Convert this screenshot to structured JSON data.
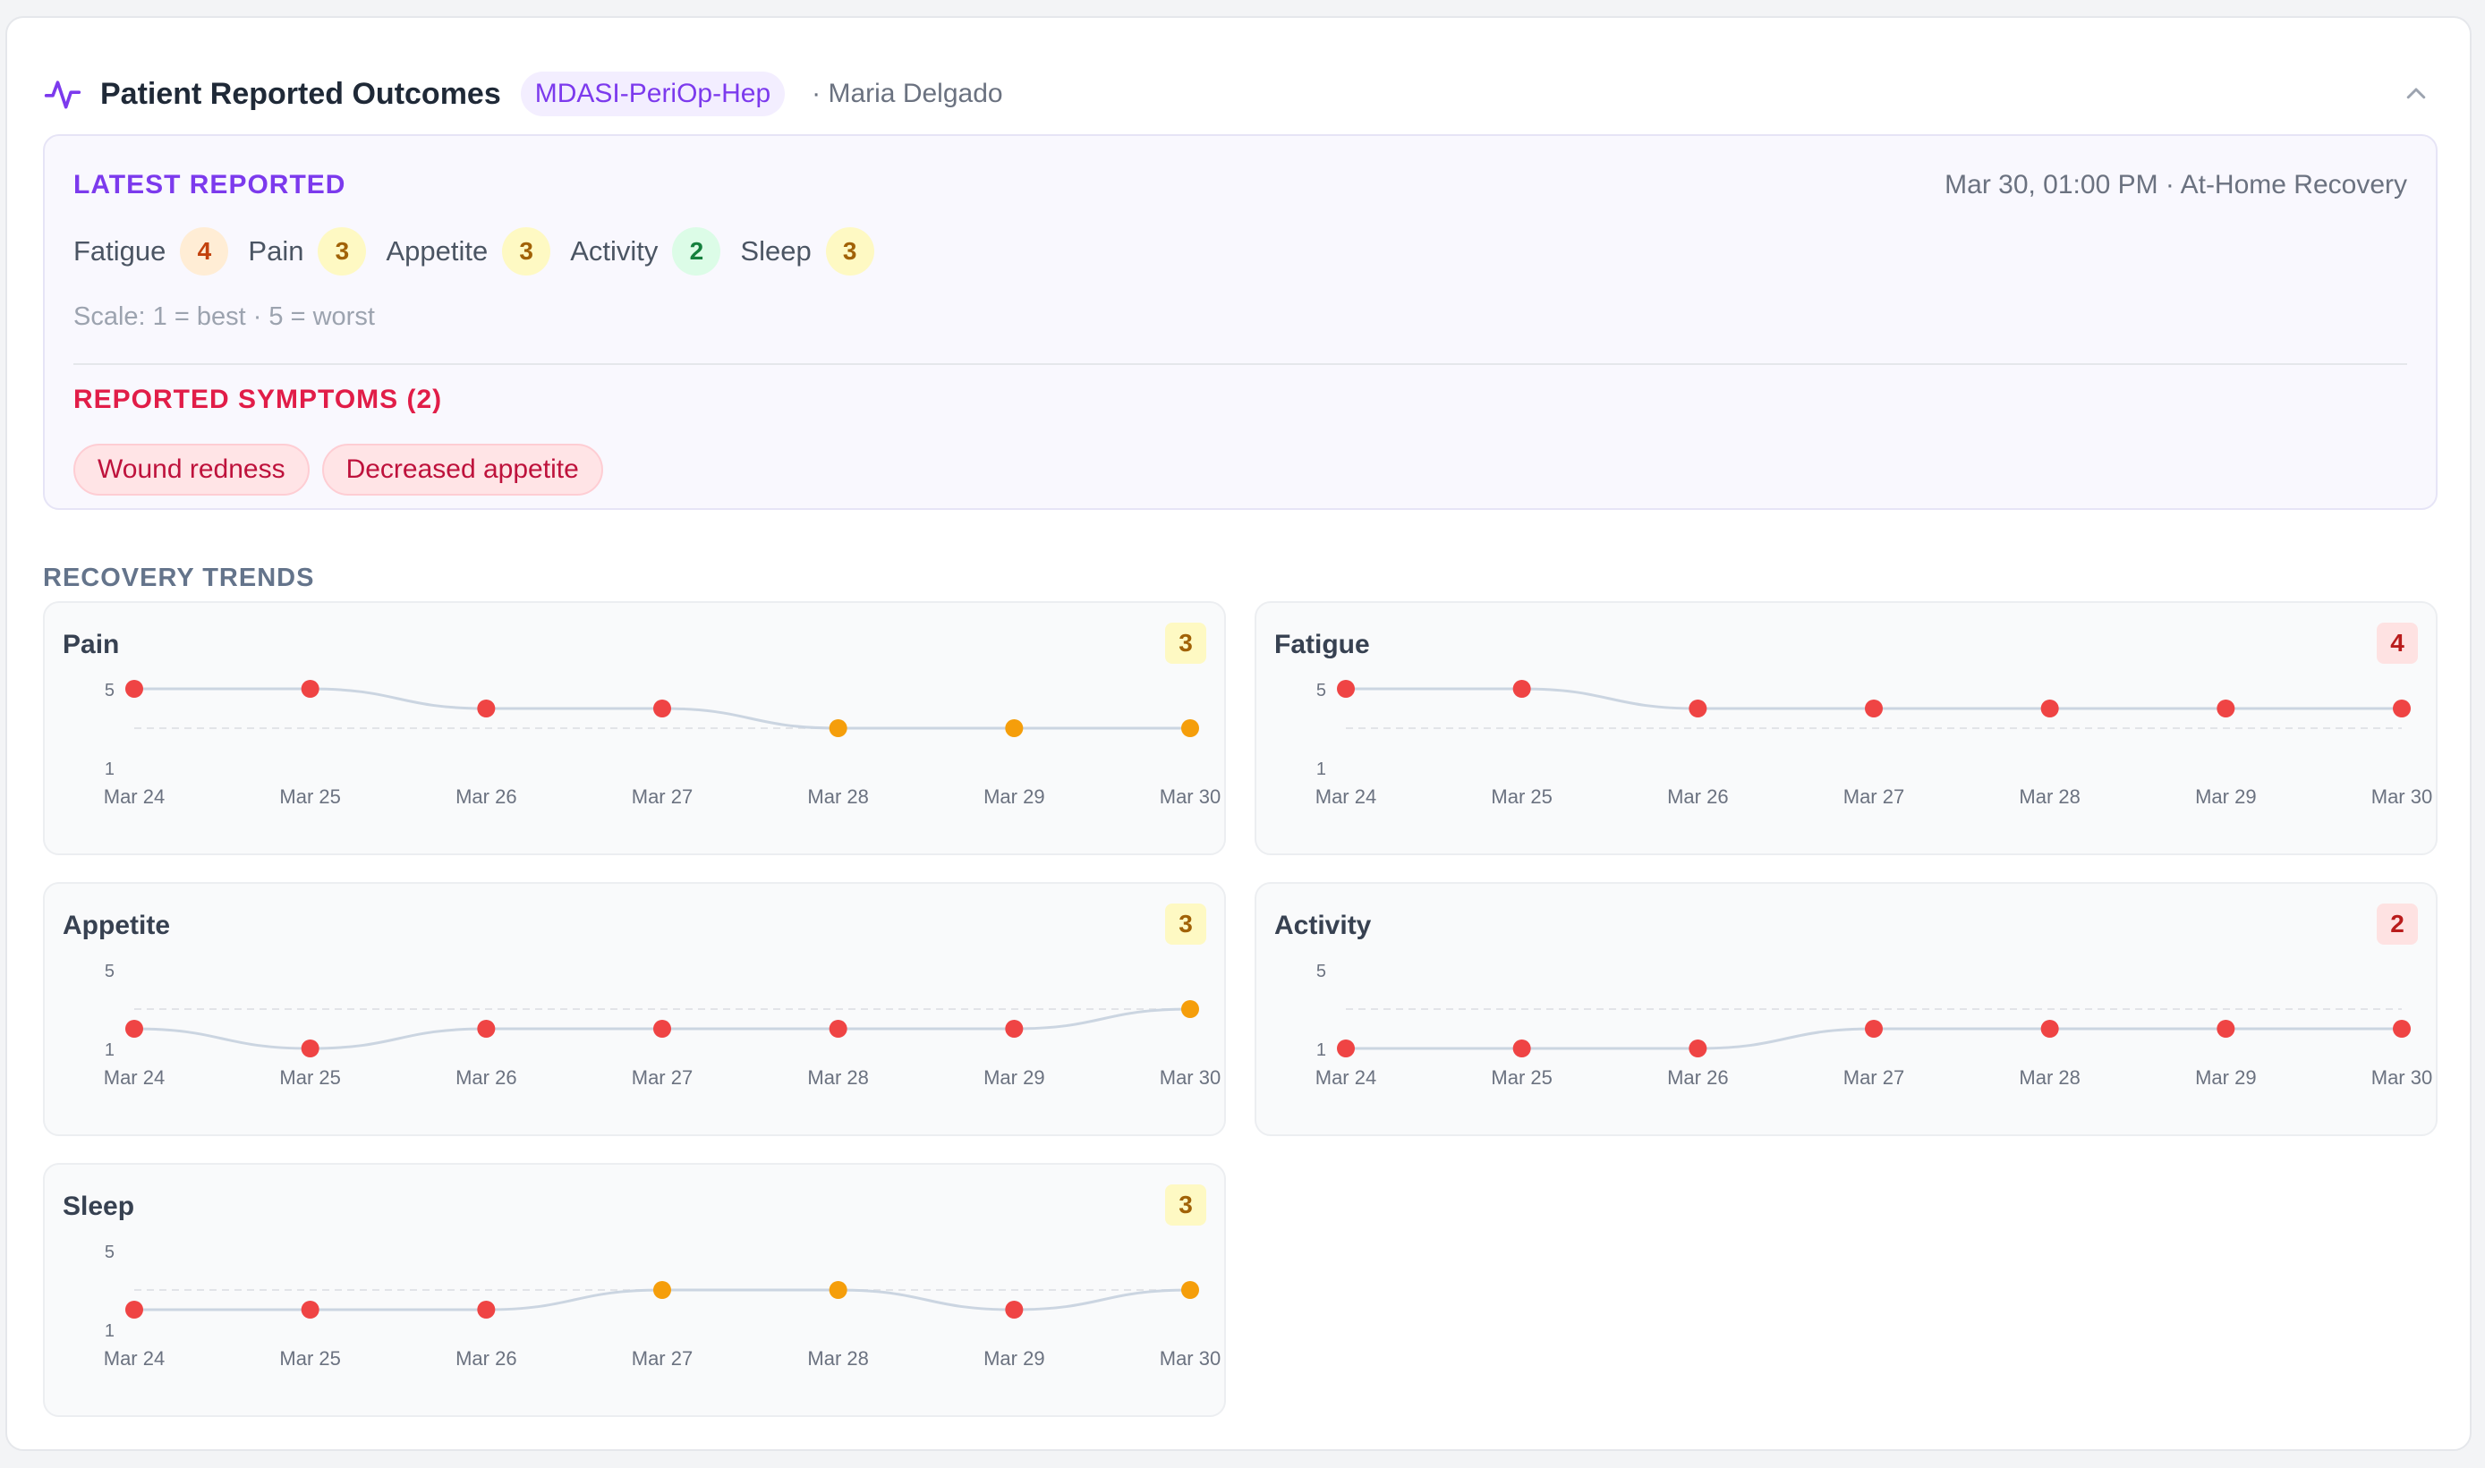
{
  "header": {
    "title": "Patient Reported Outcomes",
    "instrument": "MDASI-PeriOp-Hep",
    "patient": "· Maria Delgado"
  },
  "latest": {
    "label": "LATEST REPORTED",
    "timestamp": "Mar 30, 01:00 PM · At-Home Recovery",
    "scores": [
      {
        "name": "Fatigue",
        "value": "4",
        "level": "orange"
      },
      {
        "name": "Pain",
        "value": "3",
        "level": "yellow"
      },
      {
        "name": "Appetite",
        "value": "3",
        "level": "yellow"
      },
      {
        "name": "Activity",
        "value": "2",
        "level": "green"
      },
      {
        "name": "Sleep",
        "value": "3",
        "level": "yellow"
      }
    ],
    "scale_note": "Scale: 1 = best · 5 = worst",
    "symptoms_label": "REPORTED SYMPTOMS (2)",
    "symptoms": [
      "Wound redness",
      "Decreased appetite"
    ]
  },
  "trends": {
    "label": "RECOVERY TRENDS",
    "dates": [
      "Mar 24",
      "Mar 25",
      "Mar 26",
      "Mar 27",
      "Mar 28",
      "Mar 29",
      "Mar 30"
    ],
    "y_max_label": "5",
    "y_min_label": "1",
    "reference_value": 3
  },
  "colors": {
    "point_alert": "#ef4444",
    "point_warn": "#f59e0b",
    "line": "#cbd5e1",
    "reference": "#e2e4e8",
    "accent": "#7c3aed"
  },
  "chart_data": [
    {
      "type": "line",
      "title": "Pain",
      "current": "3",
      "badge": "yellow",
      "x": [
        "Mar 24",
        "Mar 25",
        "Mar 26",
        "Mar 27",
        "Mar 28",
        "Mar 29",
        "Mar 30"
      ],
      "values": [
        5,
        5,
        4,
        4,
        3,
        3,
        3
      ],
      "ylim": [
        1,
        5
      ]
    },
    {
      "type": "line",
      "title": "Fatigue",
      "current": "4",
      "badge": "red",
      "x": [
        "Mar 24",
        "Mar 25",
        "Mar 26",
        "Mar 27",
        "Mar 28",
        "Mar 29",
        "Mar 30"
      ],
      "values": [
        5,
        5,
        4,
        4,
        4,
        4,
        4
      ],
      "ylim": [
        1,
        5
      ]
    },
    {
      "type": "line",
      "title": "Appetite",
      "current": "3",
      "badge": "yellow",
      "x": [
        "Mar 24",
        "Mar 25",
        "Mar 26",
        "Mar 27",
        "Mar 28",
        "Mar 29",
        "Mar 30"
      ],
      "values": [
        2,
        1,
        2,
        2,
        2,
        2,
        3
      ],
      "ylim": [
        1,
        5
      ]
    },
    {
      "type": "line",
      "title": "Activity",
      "current": "2",
      "badge": "red",
      "x": [
        "Mar 24",
        "Mar 25",
        "Mar 26",
        "Mar 27",
        "Mar 28",
        "Mar 29",
        "Mar 30"
      ],
      "values": [
        1,
        1,
        1,
        2,
        2,
        2,
        2
      ],
      "ylim": [
        1,
        5
      ]
    },
    {
      "type": "line",
      "title": "Sleep",
      "current": "3",
      "badge": "yellow",
      "x": [
        "Mar 24",
        "Mar 25",
        "Mar 26",
        "Mar 27",
        "Mar 28",
        "Mar 29",
        "Mar 30"
      ],
      "values": [
        2,
        2,
        2,
        3,
        3,
        2,
        3
      ],
      "ylim": [
        1,
        5
      ]
    }
  ]
}
